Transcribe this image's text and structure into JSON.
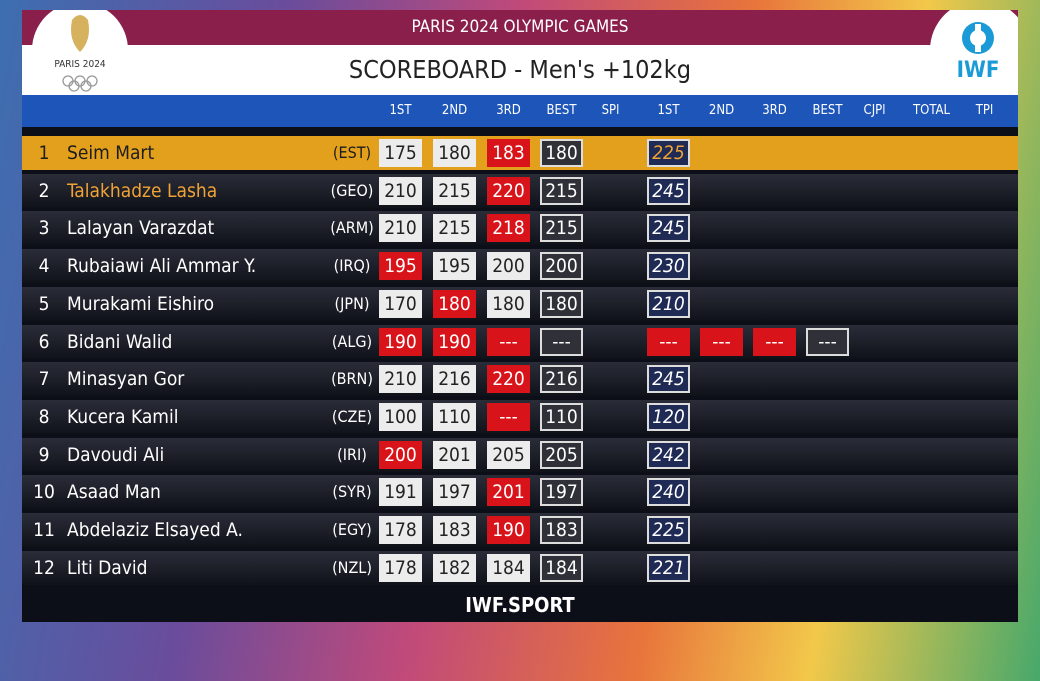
{
  "header": {
    "event": "PARIS 2024 OLYMPIC GAMES",
    "title": "SCOREBOARD - Men's +102kg",
    "left_logo": "PARIS 2024",
    "right_logo": "IWF"
  },
  "columns": [
    "1ST",
    "2ND",
    "3RD",
    "BEST",
    "SPl",
    "1ST",
    "2ND",
    "3RD",
    "BEST",
    "CJPl",
    "TOTAL",
    "TPl"
  ],
  "rows": [
    {
      "rank": 1,
      "name": "Seim Mart",
      "nation": "(EST)",
      "state": "current",
      "snatch": [
        {
          "v": 175,
          "s": "good"
        },
        {
          "v": 180,
          "s": "good"
        },
        {
          "v": 183,
          "s": "fail"
        }
      ],
      "snatch_best": 180,
      "jerk": [
        {
          "v": 225,
          "s": "current"
        }
      ]
    },
    {
      "rank": 2,
      "name": "Talakhadze Lasha",
      "nation": "(GEO)",
      "state": "next",
      "snatch": [
        {
          "v": 210,
          "s": "good"
        },
        {
          "v": 215,
          "s": "good"
        },
        {
          "v": 220,
          "s": "fail"
        }
      ],
      "snatch_best": 215,
      "jerk": [
        {
          "v": 245,
          "s": "next"
        }
      ]
    },
    {
      "rank": 3,
      "name": "Lalayan Varazdat",
      "nation": "(ARM)",
      "snatch": [
        {
          "v": 210,
          "s": "good"
        },
        {
          "v": 215,
          "s": "good"
        },
        {
          "v": 218,
          "s": "fail"
        }
      ],
      "snatch_best": 215,
      "jerk": [
        {
          "v": 245,
          "s": "next"
        }
      ]
    },
    {
      "rank": 4,
      "name": "Rubaiawi Ali Ammar Y.",
      "nation": "(IRQ)",
      "snatch": [
        {
          "v": 195,
          "s": "fail"
        },
        {
          "v": 195,
          "s": "good"
        },
        {
          "v": 200,
          "s": "good"
        }
      ],
      "snatch_best": 200,
      "jerk": [
        {
          "v": 230,
          "s": "next"
        }
      ]
    },
    {
      "rank": 5,
      "name": "Murakami Eishiro",
      "nation": "(JPN)",
      "snatch": [
        {
          "v": 170,
          "s": "good"
        },
        {
          "v": 180,
          "s": "fail"
        },
        {
          "v": 180,
          "s": "good"
        }
      ],
      "snatch_best": 180,
      "jerk": [
        {
          "v": 210,
          "s": "next"
        }
      ]
    },
    {
      "rank": 6,
      "name": "Bidani Walid",
      "nation": "(ALG)",
      "snatch": [
        {
          "v": 190,
          "s": "fail"
        },
        {
          "v": 190,
          "s": "fail"
        },
        {
          "v": "---",
          "s": "fail"
        }
      ],
      "snatch_best": "---",
      "jerk": [
        {
          "v": "---",
          "s": "fail"
        },
        {
          "v": "---",
          "s": "fail"
        },
        {
          "v": "---",
          "s": "fail"
        }
      ],
      "jerk_best": "---"
    },
    {
      "rank": 7,
      "name": "Minasyan Gor",
      "nation": "(BRN)",
      "snatch": [
        {
          "v": 210,
          "s": "good"
        },
        {
          "v": 216,
          "s": "good"
        },
        {
          "v": 220,
          "s": "fail"
        }
      ],
      "snatch_best": 216,
      "jerk": [
        {
          "v": 245,
          "s": "next"
        }
      ]
    },
    {
      "rank": 8,
      "name": "Kucera Kamil",
      "nation": "(CZE)",
      "snatch": [
        {
          "v": 100,
          "s": "good"
        },
        {
          "v": 110,
          "s": "good"
        },
        {
          "v": "---",
          "s": "fail"
        }
      ],
      "snatch_best": 110,
      "jerk": [
        {
          "v": 120,
          "s": "next"
        }
      ]
    },
    {
      "rank": 9,
      "name": "Davoudi Ali",
      "nation": "(IRI)",
      "snatch": [
        {
          "v": 200,
          "s": "fail"
        },
        {
          "v": 201,
          "s": "good"
        },
        {
          "v": 205,
          "s": "good"
        }
      ],
      "snatch_best": 205,
      "jerk": [
        {
          "v": 242,
          "s": "next"
        }
      ]
    },
    {
      "rank": 10,
      "name": "Asaad Man",
      "nation": "(SYR)",
      "snatch": [
        {
          "v": 191,
          "s": "good"
        },
        {
          "v": 197,
          "s": "good"
        },
        {
          "v": 201,
          "s": "fail"
        }
      ],
      "snatch_best": 197,
      "jerk": [
        {
          "v": 240,
          "s": "next"
        }
      ]
    },
    {
      "rank": 11,
      "name": "Abdelaziz Elsayed A.",
      "nation": "(EGY)",
      "snatch": [
        {
          "v": 178,
          "s": "good"
        },
        {
          "v": 183,
          "s": "good"
        },
        {
          "v": 190,
          "s": "fail"
        }
      ],
      "snatch_best": 183,
      "jerk": [
        {
          "v": 225,
          "s": "next"
        }
      ]
    },
    {
      "rank": 12,
      "name": "Liti David",
      "nation": "(NZL)",
      "snatch": [
        {
          "v": 178,
          "s": "good"
        },
        {
          "v": 182,
          "s": "good"
        },
        {
          "v": 184,
          "s": "good"
        }
      ],
      "snatch_best": 184,
      "jerk": [
        {
          "v": 221,
          "s": "next"
        }
      ]
    }
  ],
  "footer": "IWF.SPORT"
}
